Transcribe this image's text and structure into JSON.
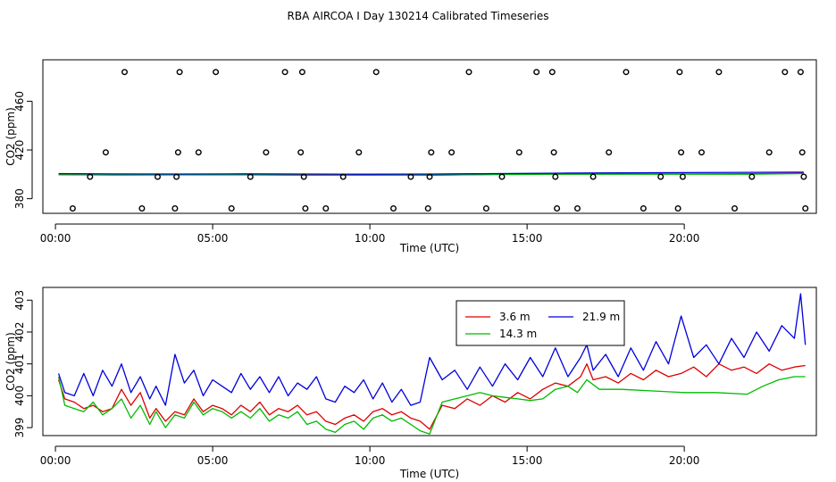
{
  "title": "RBA AIRCOA I  Day 130214  Calibrated Timeseries",
  "colors": {
    "h36": "#dd0000",
    "h143": "#00bb00",
    "h219": "#0000dd",
    "points": "#000000"
  },
  "chart_data": [
    {
      "type": "line",
      "title": "RBA AIRCOA I  Day 130214  Calibrated Timeseries",
      "xlabel": "Time (UTC)",
      "ylabel": "CO2 (ppm)",
      "xlim": [
        -0.4,
        24.2
      ],
      "ylim": [
        368,
        494
      ],
      "x_ticks": [
        0,
        5,
        10,
        15,
        20
      ],
      "x_tick_labels": [
        "00:00",
        "05:00",
        "10:00",
        "15:00",
        "20:00"
      ],
      "y_ticks": [
        380,
        420,
        460
      ],
      "y_tick_labels": [
        "380",
        "420",
        "460"
      ],
      "series": [
        {
          "name": "3.6 m",
          "color": "#dd0000",
          "x": [
            0.1,
            2,
            4,
            6,
            8,
            10,
            12,
            14,
            16,
            18,
            20,
            22,
            23.8
          ],
          "values": [
            399.8,
            399.5,
            399.6,
            399.7,
            399.4,
            399.6,
            399.3,
            400,
            400.2,
            400.4,
            400.3,
            400.5,
            400.8
          ]
        },
        {
          "name": "14.3 m",
          "color": "#00bb00",
          "x": [
            0.1,
            2,
            4,
            6,
            8,
            10,
            12,
            14,
            16,
            18,
            20,
            22,
            23.8
          ],
          "values": [
            399.6,
            399.4,
            399.5,
            399.5,
            399.2,
            399.3,
            399.4,
            399.8,
            400.1,
            400.1,
            400.1,
            400.1,
            400.6
          ]
        },
        {
          "name": "21.9 m",
          "color": "#0000dd",
          "x": [
            0.1,
            2,
            4,
            6,
            8,
            10,
            12,
            14,
            16,
            18,
            20,
            22,
            23.8
          ],
          "values": [
            400.6,
            400.3,
            400.2,
            400.4,
            400.2,
            400.1,
            400.2,
            400.6,
            401,
            401.2,
            401.4,
            401.6,
            401.8
          ]
        }
      ],
      "points": {
        "x": [
          0.55,
          1.1,
          1.6,
          2.2,
          2.75,
          3.25,
          3.8,
          3.85,
          3.9,
          3.95,
          4.55,
          5.1,
          5.6,
          6.2,
          6.7,
          7.3,
          7.8,
          7.85,
          7.9,
          7.95,
          8.6,
          9.15,
          9.65,
          10.2,
          10.75,
          11.3,
          11.85,
          11.9,
          11.95,
          12.6,
          13.15,
          13.7,
          14.2,
          14.75,
          15.3,
          15.8,
          15.85,
          15.9,
          15.95,
          16.6,
          17.1,
          17.6,
          18.15,
          18.7,
          19.25,
          19.8,
          19.85,
          19.9,
          19.95,
          20.55,
          21.1,
          21.6,
          22.15,
          22.7,
          23.2,
          23.7,
          23.75,
          23.8,
          23.85
        ],
        "values": [
          372,
          398,
          418,
          484,
          372,
          398,
          372,
          398,
          418,
          484,
          418,
          484,
          372,
          398,
          418,
          484,
          418,
          484,
          398,
          372,
          372,
          398,
          418,
          484,
          372,
          398,
          372,
          398,
          418,
          418,
          484,
          372,
          398,
          418,
          484,
          484,
          418,
          398,
          372,
          372,
          398,
          418,
          484,
          372,
          398,
          372,
          484,
          418,
          398,
          418,
          484,
          372,
          398,
          418,
          484,
          484,
          418,
          398,
          372
        ]
      }
    },
    {
      "type": "line",
      "xlabel": "Time (UTC)",
      "ylabel": "CO2 (ppm)",
      "xlim": [
        -0.4,
        24.2
      ],
      "ylim": [
        398.75,
        403.4
      ],
      "x_ticks": [
        0,
        5,
        10,
        15,
        20
      ],
      "x_tick_labels": [
        "00:00",
        "05:00",
        "10:00",
        "15:00",
        "20:00"
      ],
      "y_ticks": [
        399,
        400,
        401,
        402,
        403
      ],
      "y_tick_labels": [
        "399",
        "400",
        "401",
        "402",
        "403"
      ],
      "legend_position": "top-right",
      "series": [
        {
          "name": "3.6 m",
          "color": "#dd0000",
          "x": [
            0.1,
            0.3,
            0.6,
            0.9,
            1.2,
            1.5,
            1.8,
            2.1,
            2.4,
            2.7,
            3.0,
            3.2,
            3.5,
            3.8,
            4.1,
            4.4,
            4.7,
            5.0,
            5.3,
            5.6,
            5.9,
            6.2,
            6.5,
            6.8,
            7.1,
            7.4,
            7.7,
            8.0,
            8.3,
            8.6,
            8.9,
            9.2,
            9.5,
            9.8,
            10.1,
            10.4,
            10.7,
            11.0,
            11.3,
            11.6,
            11.9,
            12.3,
            12.7,
            13.1,
            13.5,
            13.9,
            14.3,
            14.7,
            15.1,
            15.5,
            15.9,
            16.3,
            16.7,
            16.9,
            17.1,
            17.5,
            17.9,
            18.3,
            18.7,
            19.1,
            19.5,
            19.9,
            20.3,
            20.7,
            21.1,
            21.5,
            21.9,
            22.3,
            22.7,
            23.1,
            23.5,
            23.85
          ],
          "values": [
            400.5,
            399.9,
            399.8,
            399.6,
            399.7,
            399.5,
            399.6,
            400.2,
            399.7,
            400.1,
            399.3,
            399.6,
            399.2,
            399.5,
            399.4,
            399.9,
            399.5,
            399.7,
            399.6,
            399.4,
            399.7,
            399.5,
            399.8,
            399.4,
            399.6,
            399.5,
            399.7,
            399.4,
            399.5,
            399.2,
            399.1,
            399.3,
            399.4,
            399.2,
            399.5,
            399.6,
            399.4,
            399.5,
            399.3,
            399.2,
            398.95,
            399.7,
            399.6,
            399.9,
            399.7,
            400,
            399.8,
            400.1,
            399.9,
            400.2,
            400.4,
            400.3,
            400.6,
            401.0,
            400.5,
            400.6,
            400.4,
            400.7,
            400.5,
            400.8,
            400.6,
            400.7,
            400.9,
            400.6,
            401.0,
            400.8,
            400.9,
            400.7,
            401.0,
            400.8,
            400.9,
            400.95
          ]
        },
        {
          "name": "14.3 m",
          "color": "#00bb00",
          "x": [
            0.1,
            0.3,
            0.6,
            0.9,
            1.2,
            1.5,
            1.8,
            2.1,
            2.4,
            2.7,
            3.0,
            3.2,
            3.5,
            3.8,
            4.1,
            4.4,
            4.7,
            5.0,
            5.3,
            5.6,
            5.9,
            6.2,
            6.5,
            6.8,
            7.1,
            7.4,
            7.7,
            8.0,
            8.3,
            8.6,
            8.9,
            9.2,
            9.5,
            9.8,
            10.1,
            10.4,
            10.7,
            11.0,
            11.3,
            11.6,
            11.9,
            12.3,
            12.7,
            13.1,
            13.5,
            13.9,
            14.3,
            14.7,
            15.1,
            15.5,
            15.9,
            16.3,
            16.6,
            16.9,
            17.3,
            18.0,
            19.0,
            20.0,
            21.0,
            22.0,
            22.5,
            23.0,
            23.5,
            23.85
          ],
          "values": [
            400.6,
            399.7,
            399.6,
            399.5,
            399.8,
            399.4,
            399.6,
            399.9,
            399.3,
            399.7,
            399.1,
            399.5,
            399.0,
            399.4,
            399.3,
            399.8,
            399.4,
            399.6,
            399.5,
            399.3,
            399.5,
            399.3,
            399.6,
            399.2,
            399.4,
            399.3,
            399.5,
            399.1,
            399.2,
            398.95,
            398.85,
            399.1,
            399.2,
            398.95,
            399.3,
            399.4,
            399.2,
            399.3,
            399.1,
            398.9,
            398.8,
            399.8,
            399.9,
            400.0,
            400.1,
            400.0,
            399.95,
            399.9,
            399.85,
            399.9,
            400.2,
            400.3,
            400.1,
            400.5,
            400.2,
            400.2,
            400.15,
            400.1,
            400.1,
            400.05,
            400.3,
            400.5,
            400.6,
            400.6
          ]
        },
        {
          "name": "21.9 m",
          "color": "#0000dd",
          "x": [
            0.1,
            0.3,
            0.6,
            0.9,
            1.2,
            1.5,
            1.8,
            2.1,
            2.4,
            2.7,
            3.0,
            3.2,
            3.5,
            3.8,
            4.1,
            4.4,
            4.7,
            5.0,
            5.3,
            5.6,
            5.9,
            6.2,
            6.5,
            6.8,
            7.1,
            7.4,
            7.7,
            8.0,
            8.3,
            8.6,
            8.9,
            9.2,
            9.5,
            9.8,
            10.1,
            10.4,
            10.7,
            11.0,
            11.3,
            11.6,
            11.9,
            12.3,
            12.7,
            13.1,
            13.5,
            13.9,
            14.3,
            14.7,
            15.1,
            15.5,
            15.9,
            16.3,
            16.7,
            16.9,
            17.1,
            17.5,
            17.9,
            18.3,
            18.7,
            19.1,
            19.5,
            19.9,
            20.3,
            20.7,
            21.1,
            21.5,
            21.9,
            22.3,
            22.7,
            23.1,
            23.5,
            23.7,
            23.85
          ],
          "values": [
            400.7,
            400.1,
            400.0,
            400.7,
            400.0,
            400.8,
            400.3,
            401.0,
            400.1,
            400.6,
            399.9,
            400.3,
            399.7,
            401.3,
            400.4,
            400.8,
            400.0,
            400.5,
            400.3,
            400.1,
            400.7,
            400.2,
            400.6,
            400.1,
            400.6,
            400.0,
            400.4,
            400.2,
            400.6,
            399.9,
            399.8,
            400.3,
            400.1,
            400.5,
            399.9,
            400.4,
            399.8,
            400.2,
            399.7,
            399.8,
            401.2,
            400.5,
            400.8,
            400.2,
            400.9,
            400.3,
            401.0,
            400.5,
            401.2,
            400.6,
            401.5,
            400.6,
            401.2,
            401.6,
            400.8,
            401.3,
            400.6,
            401.5,
            400.8,
            401.7,
            401.0,
            402.5,
            401.2,
            401.6,
            401.0,
            401.8,
            401.2,
            402.0,
            401.4,
            402.2,
            401.8,
            403.2,
            401.6
          ]
        }
      ]
    }
  ]
}
